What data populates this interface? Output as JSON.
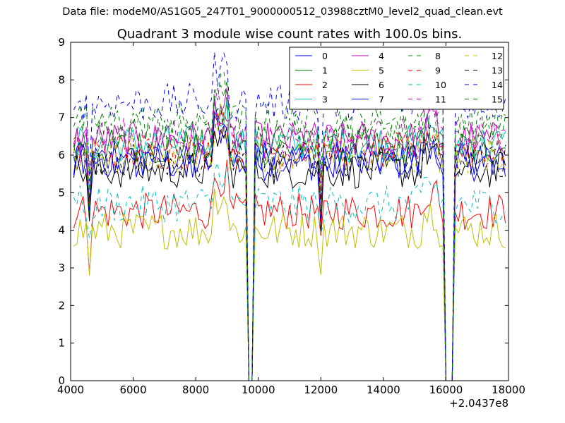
{
  "page": {
    "suptitle": "Data file: modeM0/AS1G05_247T01_9000000512_03988cztM0_level2_quad_clean.evt"
  },
  "chart_data": {
    "type": "line",
    "title": "Quadrant 3 module wise count rates with 100.0s bins.",
    "xlabel": "",
    "ylabel": "",
    "x_offset_label": "+2.0437e8",
    "xlim": [
      4000,
      18000
    ],
    "ylim": [
      0,
      9
    ],
    "x_ticks": [
      4000,
      6000,
      8000,
      10000,
      12000,
      14000,
      16000,
      18000
    ],
    "y_ticks": [
      0,
      1,
      2,
      3,
      4,
      5,
      6,
      7,
      8,
      9
    ],
    "grid": false,
    "legend_position": "top-right",
    "legend_columns": 4,
    "x_start": 4100,
    "x_step": 100,
    "segments": [
      [
        4100,
        9600
      ],
      [
        9900,
        15900
      ],
      [
        16300,
        17900
      ]
    ],
    "zero_intervals": [
      [
        9700,
        9850
      ],
      [
        16000,
        16250
      ]
    ],
    "series": [
      {
        "name": "0",
        "color": "#0000ff",
        "dash": "solid",
        "level": 5.8
      },
      {
        "name": "1",
        "color": "#008000",
        "dash": "solid",
        "level": 6.2
      },
      {
        "name": "2",
        "color": "#ff0000",
        "dash": "solid",
        "level": 4.5
      },
      {
        "name": "3",
        "color": "#00bfbf",
        "dash": "solid",
        "level": 6.3
      },
      {
        "name": "4",
        "color": "#bf00bf",
        "dash": "solid",
        "level": 6.4
      },
      {
        "name": "5",
        "color": "#bfbf00",
        "dash": "solid",
        "level": 4.0
      },
      {
        "name": "6",
        "color": "#000000",
        "dash": "solid",
        "level": 5.6
      },
      {
        "name": "7",
        "color": "#0000ff",
        "dash": "solid",
        "level": 5.9
      },
      {
        "name": "8",
        "color": "#008000",
        "dash": "dashed",
        "level": 6.9
      },
      {
        "name": "9",
        "color": "#ff0000",
        "dash": "dashed",
        "level": 6.1
      },
      {
        "name": "10",
        "color": "#00bfbf",
        "dash": "dashed",
        "level": 4.7
      },
      {
        "name": "11",
        "color": "#bf00bf",
        "dash": "dashed",
        "level": 6.5
      },
      {
        "name": "12",
        "color": "#bfbf00",
        "dash": "dashed",
        "level": 6.0
      },
      {
        "name": "13",
        "color": "#000000",
        "dash": "dashed",
        "level": 5.9
      },
      {
        "name": "14",
        "color": "#0000ff",
        "dash": "dashed",
        "level": 7.4
      },
      {
        "name": "15",
        "color": "#008000",
        "dash": "dashed",
        "level": 6.6
      }
    ]
  }
}
